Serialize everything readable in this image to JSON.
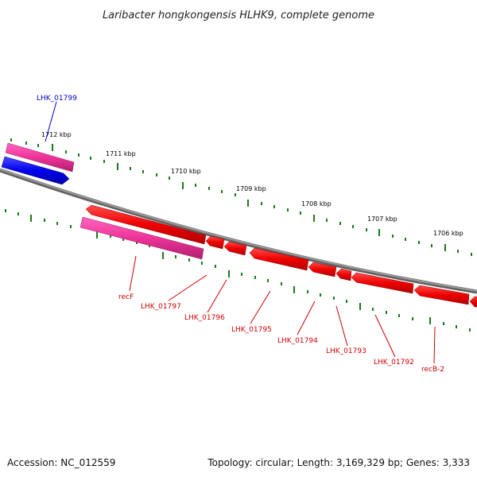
{
  "title": "Laribacter hongkongensis HLHK9, complete genome",
  "footer": {
    "accession": "Accession: NC_012559",
    "summary": "Topology: circular; Length: 3,169,329 bp; Genes: 3,333"
  },
  "ticks": [
    "1712 kbp",
    "1711 kbp",
    "1710 kbp",
    "1709 kbp",
    "1708 kbp",
    "1707 kbp",
    "1706 kbp"
  ],
  "genes": [
    {
      "label": "LHK_01799",
      "color": "#0000cc"
    },
    {
      "label": "recF",
      "color": "#cc0000"
    },
    {
      "label": "LHK_01797",
      "color": "#cc0000"
    },
    {
      "label": "LHK_01796",
      "color": "#cc0000"
    },
    {
      "label": "LHK_01795",
      "color": "#cc0000"
    },
    {
      "label": "LHK_01794",
      "color": "#cc0000"
    },
    {
      "label": "LHK_01793",
      "color": "#cc0000"
    },
    {
      "label": "LHK_01792",
      "color": "#cc0000"
    },
    {
      "label": "recB-2",
      "color": "#cc0000"
    }
  ],
  "colors": {
    "backbone": "#808080",
    "forward_cds": "#0000ee",
    "reverse_cds": "#ee0000",
    "rna_or_pseudo": "#ee3399",
    "tick_mark": "#1a7a1a"
  }
}
